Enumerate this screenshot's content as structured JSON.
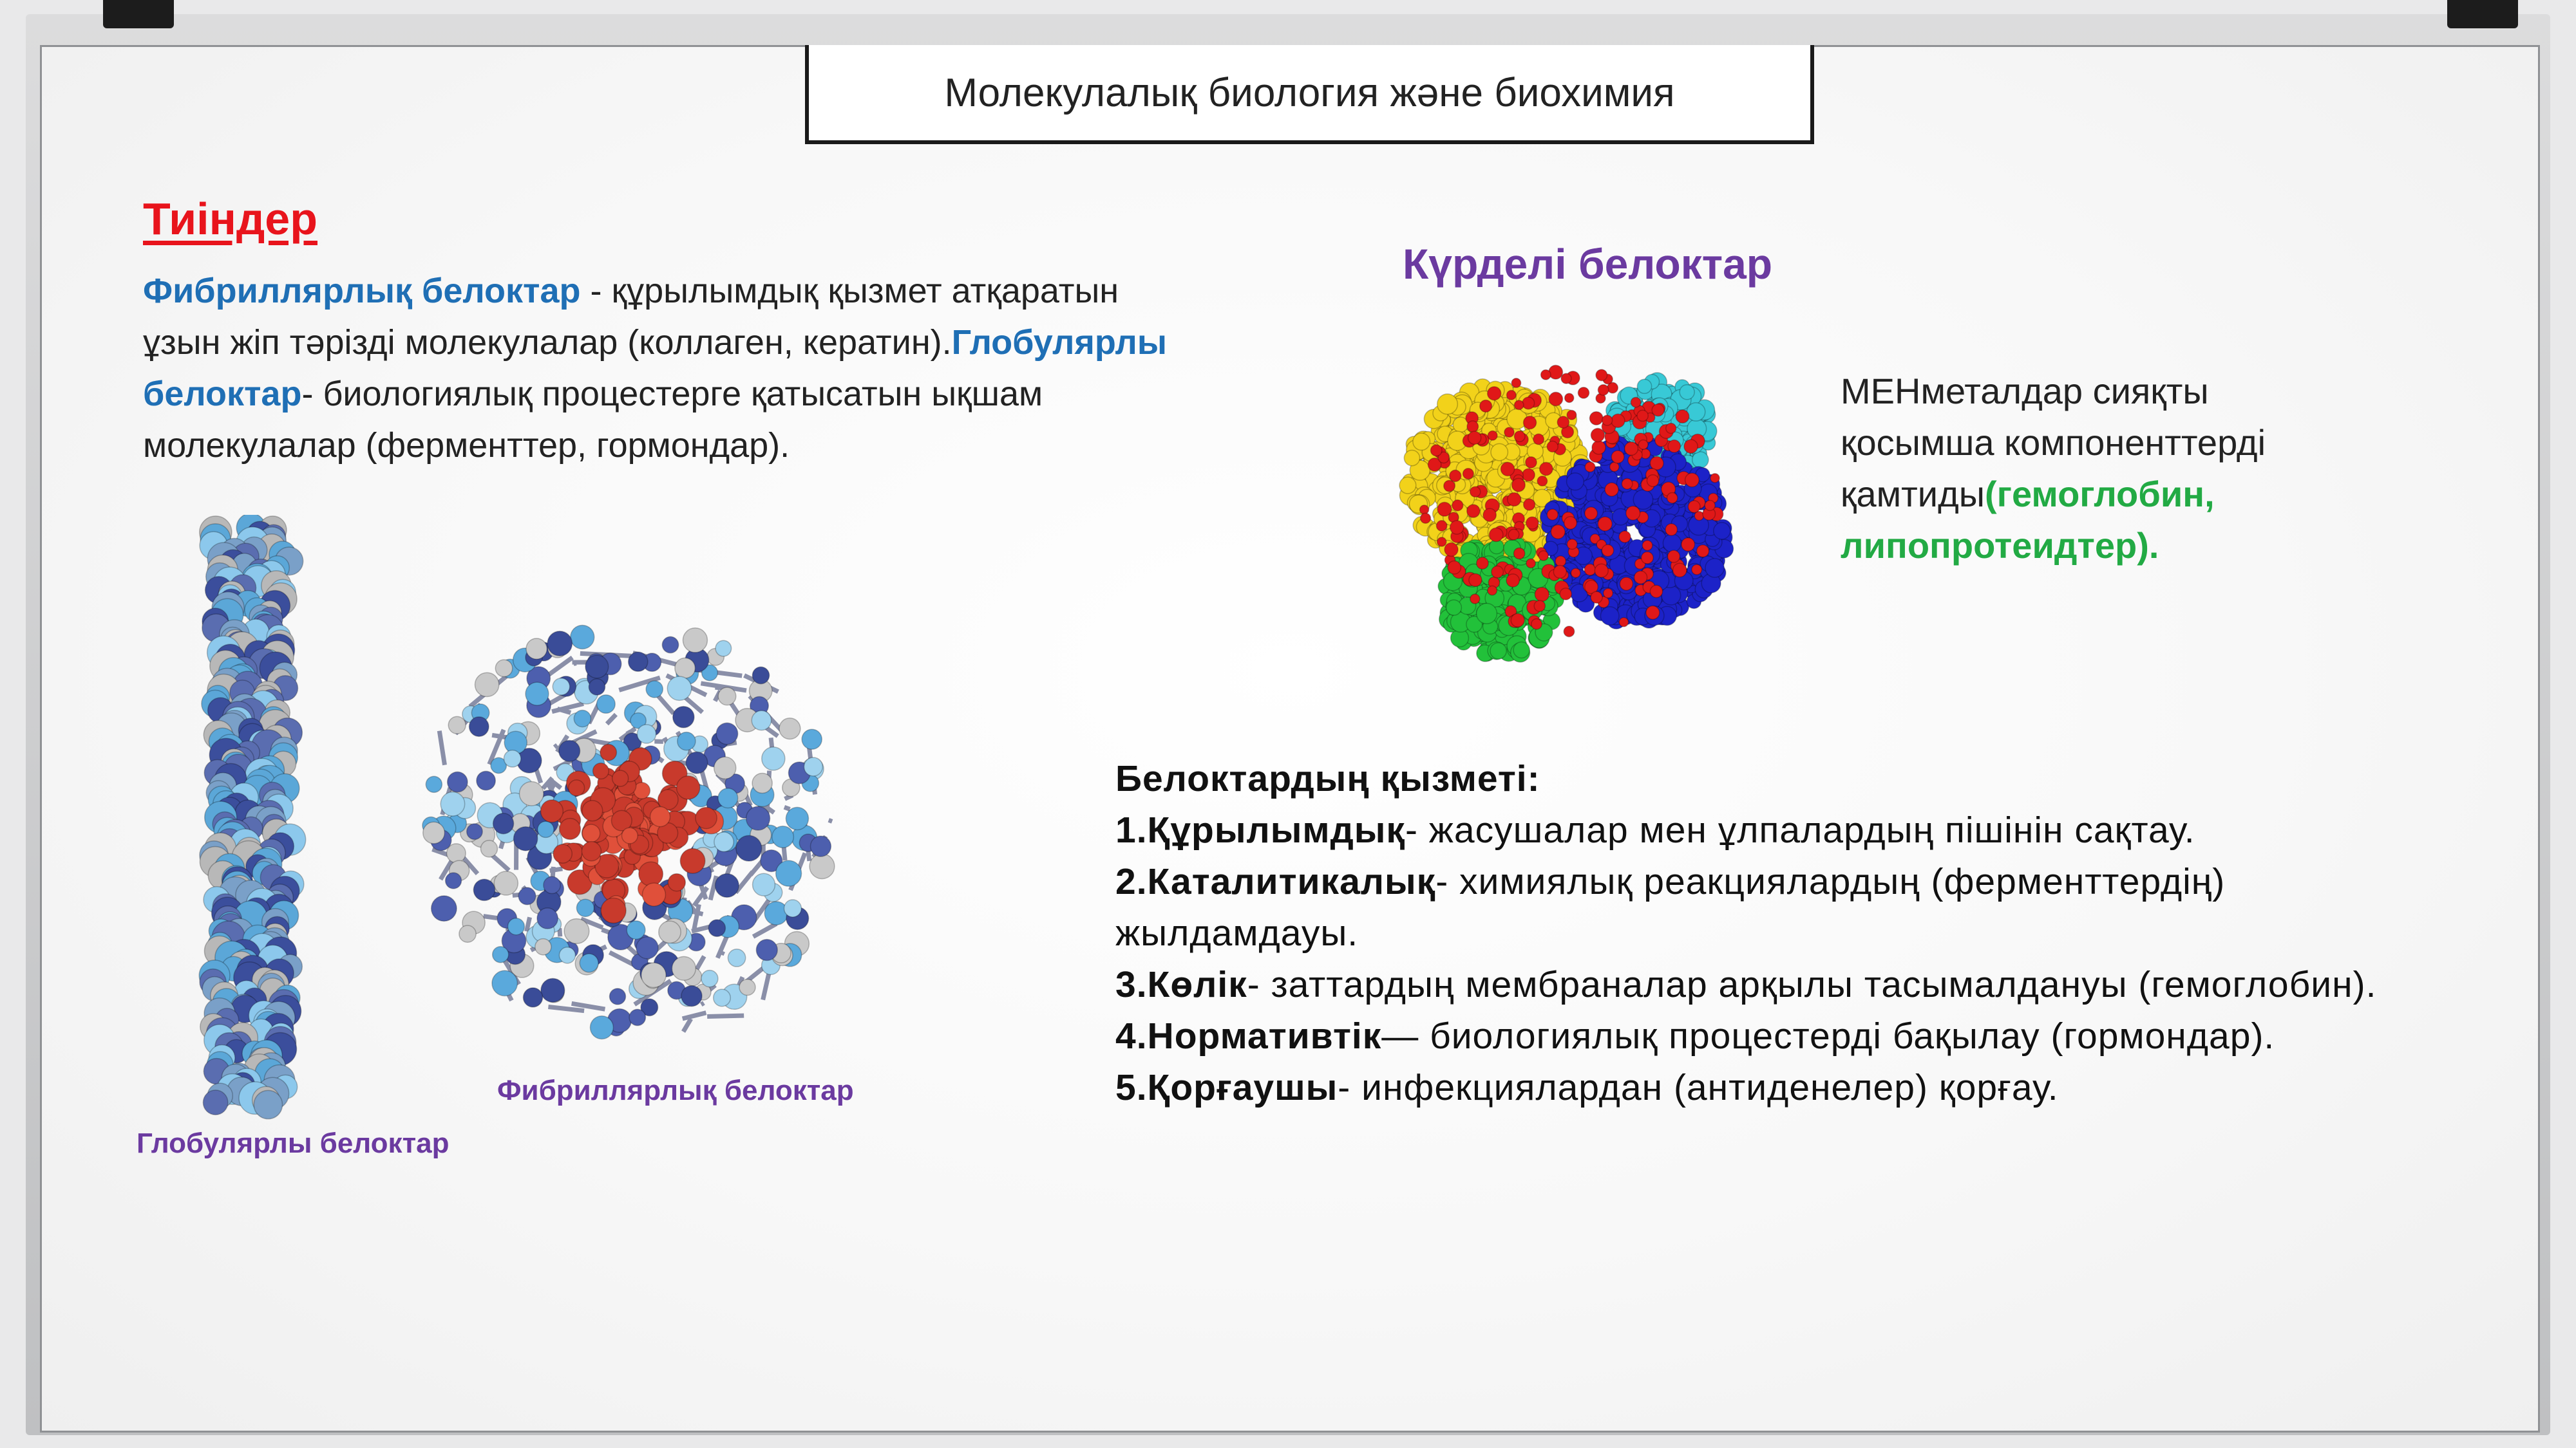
{
  "header": {
    "title": "Молекулалық биология және биохимия"
  },
  "left": {
    "heading": "Тиіндер",
    "fibrillar_term": "Фибриллярлық белоктар",
    "fibrillar_desc": " - құрылымдық қызмет атқаратын ұзын жіп тәрізді молекулалар (коллаген, кератин).",
    "globular_term": "Глобулярлы белоктар",
    "globular_desc": "- биологиялық процестерге қатысатын ықшам молекулалар (ферменттер, гормондар)."
  },
  "right": {
    "heading": "Күрделі белоктар",
    "desc": "МЕНметалдар сияқты қосымша компоненттерді қамтиды",
    "examples": "(гемоглобин, липопротеидтер)."
  },
  "captions": {
    "globular": "Глобулярлы белоктар",
    "fibrillar": "Фибриллярлық белоктар"
  },
  "functions": {
    "heading": "Белоктардың қызметі:",
    "items": [
      {
        "term": "1.Құрылымдық",
        "desc": "- жасушалар мен ұлпалардың пішінін сақтау."
      },
      {
        "term": "2.Каталитикалық",
        "desc": "- химиялық реакциялардың (ферменттердің) жылдамдауы."
      },
      {
        "term": "3.Көлік",
        "desc": "- заттардың мембраналар арқылы тасымалдануы (гемоглобин)."
      },
      {
        "term": "4.Нормативтік",
        "desc": "— биологиялық процестерді бақылау (гормондар)."
      },
      {
        "term": "5.Қорғаушы",
        "desc": "- инфекциялардан (антиденелер) қорғау."
      }
    ]
  },
  "colors": {
    "red_heading": "#e8141c",
    "blue_term": "#1f6fb5",
    "purple": "#6b3aa0",
    "green": "#22aa44"
  },
  "icons": [
    "fibrous-protein-image",
    "globular-protein-image",
    "complex-protein-image"
  ]
}
